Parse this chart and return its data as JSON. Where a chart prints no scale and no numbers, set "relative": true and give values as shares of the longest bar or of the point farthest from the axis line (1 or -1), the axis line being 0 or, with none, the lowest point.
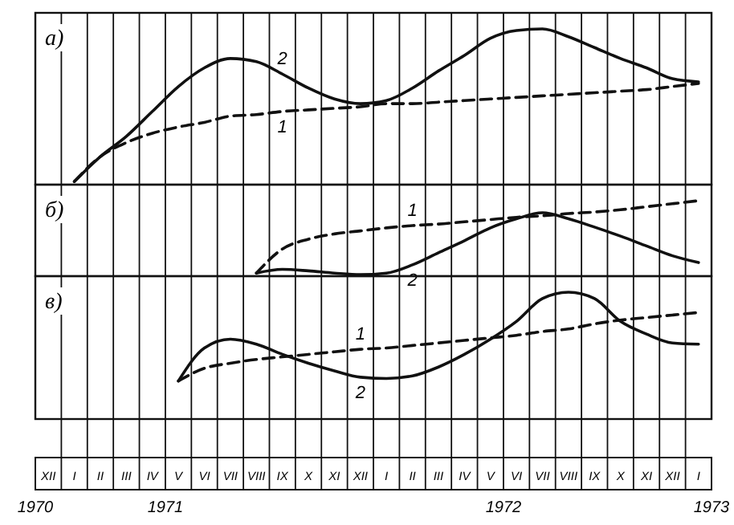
{
  "chart_data": [
    {
      "type": "line",
      "title": "а)",
      "relative": true,
      "grid": "x",
      "tick_labels": false,
      "categories": [
        null,
        null,
        null,
        null,
        null,
        null,
        null,
        null,
        null,
        null,
        null,
        null,
        null,
        null,
        null,
        null,
        null,
        null,
        null,
        null,
        null,
        null,
        null,
        null,
        null,
        null
      ],
      "series": [
        {
          "name": "1",
          "color": "#111111",
          "line_style": "dashed",
          "values": [
            null,
            0.02,
            0.18,
            0.27,
            0.33,
            0.37,
            0.4,
            0.44,
            0.45,
            0.47,
            0.48,
            0.49,
            0.5,
            0.52,
            0.52,
            0.53,
            0.54,
            0.55,
            0.56,
            0.57,
            0.58,
            0.59,
            0.6,
            0.61,
            0.63,
            0.65
          ]
        },
        {
          "name": "2",
          "color": "#111111",
          "line_style": "solid",
          "values": [
            null,
            0.02,
            0.18,
            0.31,
            0.47,
            0.63,
            0.75,
            0.81,
            0.79,
            0.71,
            0.62,
            0.55,
            0.52,
            0.54,
            0.62,
            0.73,
            0.83,
            0.94,
            0.99,
            1,
            0.95,
            0.88,
            0.81,
            0.75,
            0.68,
            0.66
          ]
        }
      ]
    },
    {
      "type": "line",
      "title": "б)",
      "relative": true,
      "grid": "x",
      "tick_labels": false,
      "categories": [
        null,
        null,
        null,
        null,
        null,
        null,
        null,
        null,
        null,
        null,
        null,
        null,
        null,
        null,
        null,
        null,
        null,
        null,
        null,
        null,
        null,
        null,
        null,
        null,
        null,
        null
      ],
      "series": [
        {
          "name": "1",
          "color": "#111111",
          "line_style": "dashed",
          "values": [
            null,
            null,
            null,
            null,
            null,
            null,
            null,
            null,
            0.04,
            0.36,
            0.49,
            0.56,
            0.6,
            0.64,
            0.67,
            0.69,
            0.72,
            0.75,
            0.78,
            0.8,
            0.83,
            0.85,
            0.88,
            0.92,
            0.96,
            1
          ]
        },
        {
          "name": "2",
          "color": "#111111",
          "line_style": "solid",
          "values": [
            null,
            null,
            null,
            null,
            null,
            null,
            null,
            null,
            0.04,
            0.09,
            0.07,
            0.04,
            0.02,
            0.04,
            0.15,
            0.31,
            0.47,
            0.64,
            0.76,
            0.84,
            0.76,
            0.65,
            0.53,
            0.4,
            0.27,
            0.18
          ]
        }
      ]
    },
    {
      "type": "line",
      "title": "в)",
      "relative": true,
      "grid": "x",
      "categories": [
        "XII",
        "I",
        "II",
        "III",
        "IV",
        "V",
        "VI",
        "VII",
        "VIII",
        "IX",
        "X",
        "XI",
        "XII",
        "I",
        "II",
        "III",
        "IV",
        "V",
        "VI",
        "VII",
        "VIII",
        "IX",
        "X",
        "XI",
        "XII",
        "I"
      ],
      "annotations": [
        "1970",
        "1971",
        "1972",
        "1973"
      ],
      "series": [
        {
          "name": "1",
          "color": "#111111",
          "line_style": "dashed",
          "values": [
            null,
            null,
            null,
            null,
            null,
            0.3,
            0.4,
            0.44,
            0.47,
            0.49,
            0.51,
            0.53,
            0.55,
            0.56,
            0.58,
            0.6,
            0.62,
            0.64,
            0.66,
            0.69,
            0.71,
            0.75,
            0.78,
            0.8,
            0.82,
            0.84
          ]
        },
        {
          "name": "2",
          "color": "#111111",
          "line_style": "solid",
          "values": [
            null,
            null,
            null,
            null,
            null,
            0.3,
            0.56,
            0.63,
            0.59,
            0.51,
            0.44,
            0.38,
            0.33,
            0.32,
            0.34,
            0.41,
            0.51,
            0.63,
            0.77,
            0.95,
            1,
            0.95,
            0.77,
            0.67,
            0.6,
            0.59
          ]
        }
      ]
    }
  ]
}
